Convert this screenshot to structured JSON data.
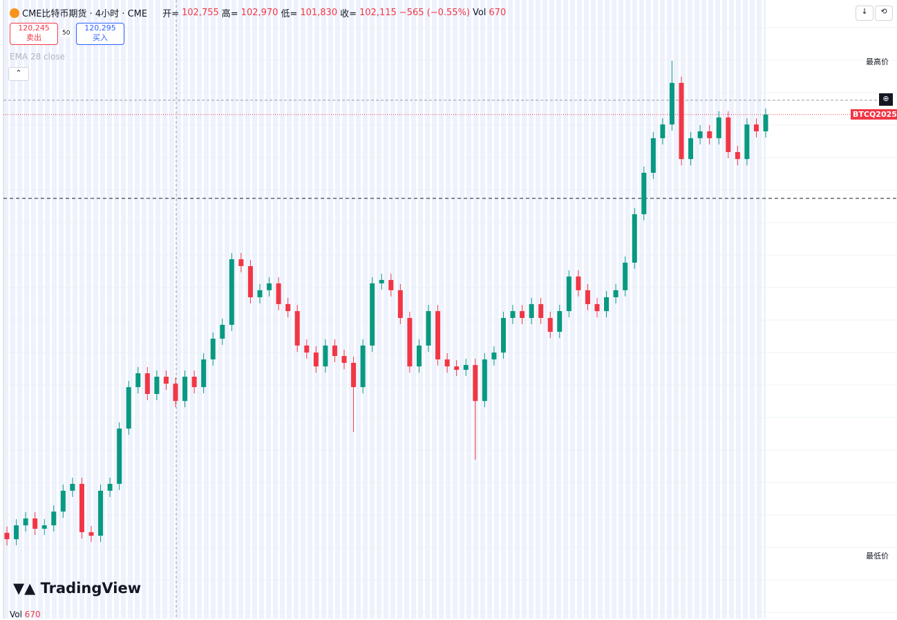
{
  "chart_data": {
    "type": "candlestick",
    "title": "CME比特币期货 · 4小时 · CME",
    "ohlc_header": {
      "open_label": "开=",
      "open": "102,755",
      "high_label": "高=",
      "high": "102,970",
      "low_label": "低=",
      "low": "101,830",
      "close_label": "收=",
      "close": "102,115",
      "change": "−565 (−0.55%)",
      "vol_label": "Vol",
      "vol": "670"
    },
    "sell_price": "120,245",
    "sell_label": "卖出",
    "spread": "50",
    "buy_price": "120,295",
    "buy_label": "买入",
    "indicator": "EMA 28 close",
    "highest_label": "最高价",
    "lowest_label": "最低价",
    "symbol_label": "BTCQ2025",
    "brand": "TradingView",
    "volume_label": "Vol",
    "volume_value": "670",
    "up_color": "#089981",
    "down_color": "#f23645",
    "ylim": [
      89000,
      127600
    ],
    "series": {
      "open": [
        93400,
        92990,
        93880,
        94320,
        93660,
        93880,
        94760,
        96100,
        96540,
        93440,
        93210,
        96100,
        96540,
        100090,
        102750,
        103640,
        102310,
        103420,
        102970,
        101860,
        103420,
        102750,
        104530,
        105860,
        106750,
        110960,
        110520,
        108520,
        108970,
        109410,
        108080,
        107630,
        105420,
        104970,
        104080,
        105420,
        104750,
        104310,
        102750,
        105420,
        109410,
        109630,
        108970,
        107190,
        104080,
        105420,
        107630,
        104530,
        104080,
        103860,
        104170,
        101860,
        104530,
        104970,
        107190,
        107630,
        107190,
        108080,
        107190,
        106300,
        107630,
        109850,
        108970,
        108080,
        107630,
        108520,
        108970,
        110740,
        113850,
        116510,
        118730,
        119610,
        122280,
        117390,
        118730,
        119170,
        118730,
        120060,
        117840,
        117390,
        119610,
        119170
      ],
      "high": [
        93800,
        94280,
        94720,
        94720,
        94280,
        95160,
        96500,
        96940,
        96940,
        93840,
        96500,
        96940,
        100490,
        103150,
        104040,
        104040,
        103820,
        103820,
        103370,
        103820,
        103820,
        104930,
        106260,
        107150,
        111360,
        111360,
        110920,
        109370,
        109810,
        109810,
        108480,
        108030,
        105820,
        105370,
        105820,
        105820,
        105150,
        104710,
        105820,
        109810,
        110030,
        110030,
        109370,
        107590,
        105820,
        108030,
        108030,
        104930,
        104480,
        104570,
        104570,
        104930,
        105370,
        107590,
        108030,
        108030,
        108480,
        108480,
        107590,
        108030,
        110250,
        110250,
        109370,
        108480,
        108920,
        109370,
        111140,
        114250,
        116910,
        119130,
        120010,
        123700,
        122680,
        119130,
        119570,
        119570,
        120460,
        120460,
        118240,
        120010,
        120010,
        120645
      ],
      "low": [
        92590,
        92590,
        93480,
        93260,
        93260,
        93480,
        94360,
        95700,
        93040,
        92810,
        92810,
        95700,
        96140,
        99690,
        102350,
        101910,
        101910,
        102570,
        101460,
        101460,
        102350,
        102350,
        104130,
        105460,
        106350,
        110120,
        108120,
        108120,
        108570,
        107680,
        107230,
        105020,
        104570,
        103680,
        103680,
        104350,
        103910,
        99870,
        102350,
        105020,
        109010,
        108570,
        106790,
        103680,
        103680,
        105020,
        104130,
        103680,
        103460,
        103460,
        98090,
        101460,
        104130,
        104570,
        106790,
        106790,
        106790,
        106790,
        105900,
        105900,
        107230,
        108570,
        107680,
        107230,
        107230,
        108120,
        108570,
        110340,
        113450,
        116110,
        118330,
        119210,
        116990,
        116990,
        118330,
        118330,
        118330,
        117440,
        116990,
        116990,
        118770,
        118770
      ],
      "close": [
        92990,
        93880,
        94320,
        93660,
        93880,
        94760,
        96100,
        96540,
        93440,
        93210,
        96100,
        96540,
        100090,
        102750,
        103640,
        102310,
        103420,
        102970,
        101860,
        103420,
        102750,
        104530,
        105860,
        106750,
        110960,
        110520,
        108520,
        108970,
        109410,
        108080,
        107630,
        105420,
        104970,
        104080,
        105420,
        104750,
        104310,
        102750,
        105420,
        109410,
        109630,
        108970,
        107190,
        104080,
        105420,
        107630,
        104530,
        104080,
        103860,
        104170,
        101860,
        104530,
        104970,
        107190,
        107630,
        107190,
        108080,
        107190,
        106300,
        107630,
        109850,
        108970,
        108080,
        107630,
        108520,
        108970,
        110740,
        113850,
        116510,
        118730,
        119610,
        122280,
        117390,
        118730,
        119170,
        118730,
        120060,
        117840,
        117390,
        119610,
        119170,
        120245
      ]
    }
  }
}
